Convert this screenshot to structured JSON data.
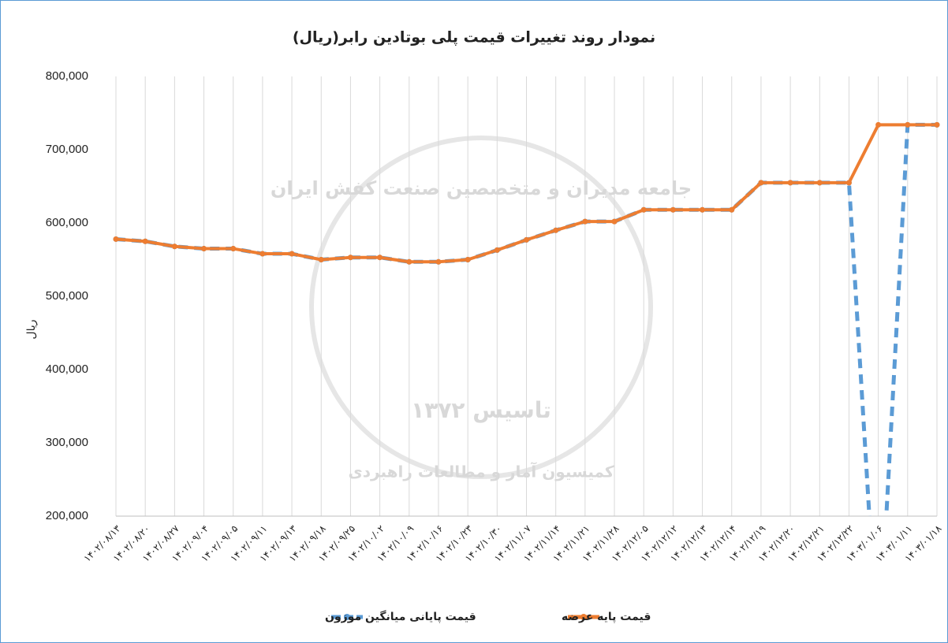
{
  "watermark": [
    "جامعه مدیران و متخصصین صنعت کفش ایران",
    "تاسیس ۱۳۷۲",
    "کمیسیون آمار و مطالعات راهبردی"
  ],
  "chart_data": {
    "type": "line",
    "title": "نمودار روند تغییرات قیمت پلی بوتادین رابر(ریال)",
    "y_label": "ریال",
    "categories": [
      "۱۴۰۲/۰۸/۱۳",
      "۱۴۰۲/۰۸/۲۰",
      "۱۴۰۲/۰۸/۲۷",
      "۱۴۰۲/۰۹/۰۴",
      "۱۴۰۲/۰۹/۰۵",
      "۱۴۰۲/۰۹/۱۱",
      "۱۴۰۲/۰۹/۱۳",
      "۱۴۰۲/۰۹/۱۸",
      "۱۴۰۲/۰۹/۲۵",
      "۱۴۰۲/۱۰/۰۲",
      "۱۴۰۲/۱۰/۰۹",
      "۱۴۰۲/۱۰/۱۶",
      "۱۴۰۲/۱۰/۲۳",
      "۱۴۰۲/۱۰/۳۰",
      "۱۴۰۲/۱۱/۰۷",
      "۱۴۰۲/۱۱/۱۴",
      "۱۴۰۲/۱۱/۲۱",
      "۱۴۰۲/۱۱/۲۸",
      "۱۴۰۲/۱۲/۰۵",
      "۱۴۰۲/۱۲/۱۲",
      "۱۴۰۲/۱۲/۱۳",
      "۱۴۰۲/۱۲/۱۴",
      "۱۴۰۲/۱۲/۱۹",
      "۱۴۰۲/۱۲/۲۰",
      "۱۴۰۲/۱۲/۲۱",
      "۱۴۰۲/۱۲/۲۲",
      "۱۴۰۳/۰۱/۰۶",
      "۱۴۰۳/۰۱/۱۱",
      "۱۴۰۳/۰۱/۱۸"
    ],
    "series": [
      {
        "name": "قیمت پایانی میانگین موزون",
        "color": "#5b9bd5",
        "dashed": true,
        "values": [
          578000,
          575000,
          568000,
          565000,
          565000,
          558000,
          558000,
          550000,
          553000,
          553000,
          547000,
          547000,
          550000,
          563000,
          577000,
          590000,
          602000,
          602000,
          618000,
          618000,
          618000,
          618000,
          655000,
          655000,
          655000,
          655000,
          0,
          734000,
          734000
        ]
      },
      {
        "name": "قیمت پایه عرضه",
        "color": "#ed7d31",
        "values": [
          578000,
          575000,
          568000,
          565000,
          565000,
          558000,
          558000,
          550000,
          553000,
          553000,
          547000,
          547000,
          550000,
          563000,
          577000,
          590000,
          602000,
          602000,
          618000,
          618000,
          618000,
          618000,
          655000,
          655000,
          655000,
          655000,
          734000,
          734000,
          734000
        ]
      }
    ],
    "ylim": [
      200000,
      800000
    ],
    "yticks": [
      {
        "value": 200000,
        "label": "200,000"
      },
      {
        "value": 300000,
        "label": "300,000"
      },
      {
        "value": 400000,
        "label": "400,000"
      },
      {
        "value": 500000,
        "label": "500,000"
      },
      {
        "value": 600000,
        "label": "600,000"
      },
      {
        "value": 700000,
        "label": "700,000"
      },
      {
        "value": 800000,
        "label": "800,000"
      }
    ],
    "grid": true
  }
}
